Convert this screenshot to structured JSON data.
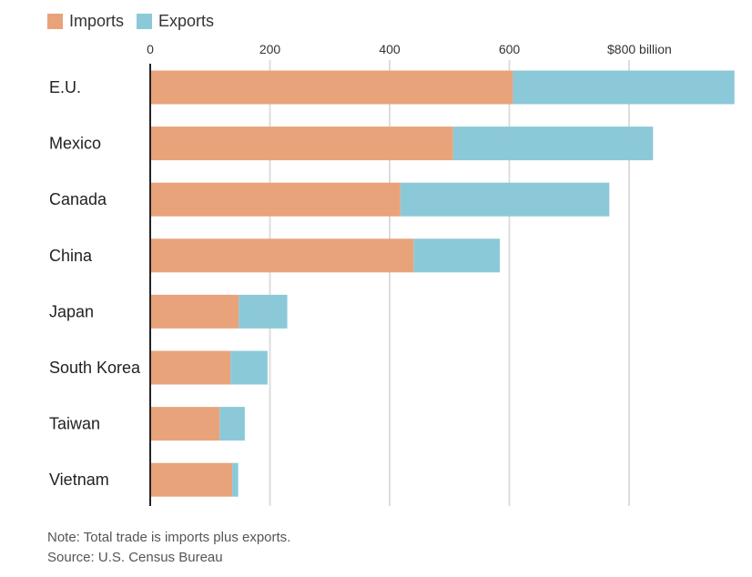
{
  "legend": {
    "imports_label": "Imports",
    "exports_label": "Exports"
  },
  "colors": {
    "imports": "#E8A37B",
    "exports": "#8BC9D8",
    "grid": "#DDDDDD",
    "axis": "#222222"
  },
  "chart_data": {
    "type": "bar",
    "orientation": "horizontal",
    "stacked": true,
    "categories": [
      "E.U.",
      "Mexico",
      "Canada",
      "China",
      "Japan",
      "South Korea",
      "Taiwan",
      "Vietnam"
    ],
    "series": [
      {
        "name": "Imports",
        "values": [
          606,
          506,
          418,
          440,
          148,
          134,
          116,
          137
        ]
      },
      {
        "name": "Exports",
        "values": [
          370,
          334,
          349,
          144,
          81,
          62,
          42,
          10
        ]
      }
    ],
    "xlim": [
      0,
      980
    ],
    "xticks": [
      0,
      200,
      400,
      600,
      800
    ],
    "xtick_labels": [
      "0",
      "200",
      "400",
      "600",
      "$800 billion"
    ],
    "grid": true,
    "legend_position": "top-left"
  },
  "footer": {
    "note": "Note: Total trade is imports plus exports.",
    "source": "Source: U.S. Census Bureau"
  }
}
